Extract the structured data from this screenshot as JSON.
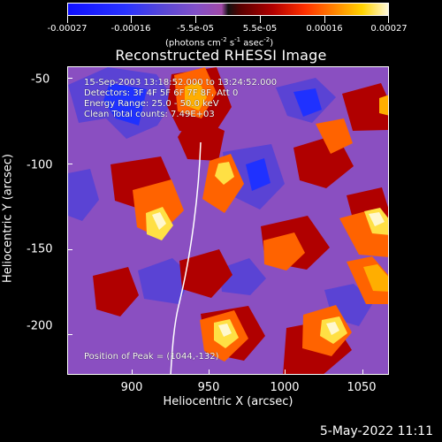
{
  "colorbar": {
    "tick_labels": [
      "-0.00027",
      "-0.00016",
      "-5.5e-05",
      "5.5e-05",
      "0.00016",
      "0.00027"
    ],
    "units_text": "(photons cm",
    "units_sup_1": "-2",
    "units_mid_1": " s",
    "units_sup_2": "-1",
    "units_mid_2": " asec",
    "units_sup_3": "-2",
    "units_end": ")"
  },
  "title": "Reconstructed RHESSI Image",
  "overlay": {
    "line_1": "15-Sep-2003 13:18:52.000 to 13:24:52.000",
    "line_2": "Detectors: 3F 4F 5F 6F 7F 8F, Att 0",
    "line_3": "Energy Range: 25.0 - 50.0 keV",
    "line_4": "Clean     Total counts: 7.49E+03",
    "peak": "Position of Peak = (1044,-132)"
  },
  "axes": {
    "y_ticks": [
      "-50",
      "-100",
      "-150",
      "-200"
    ],
    "x_ticks": [
      "900",
      "950",
      "1000",
      "1050"
    ],
    "y_title": "Heliocentric Y (arcsec)",
    "x_title": "Heliocentric X (arcsec)"
  },
  "footer": {
    "date": "5-May-2022 11:11"
  },
  "image": {
    "palette": [
      "#1f31ff",
      "#5a43d4",
      "#8a4fc1",
      "#ad4aa7",
      "#b00000",
      "#ef1c00",
      "#ff6300",
      "#ffae00",
      "#ffe044",
      "#fff8ce"
    ]
  }
}
